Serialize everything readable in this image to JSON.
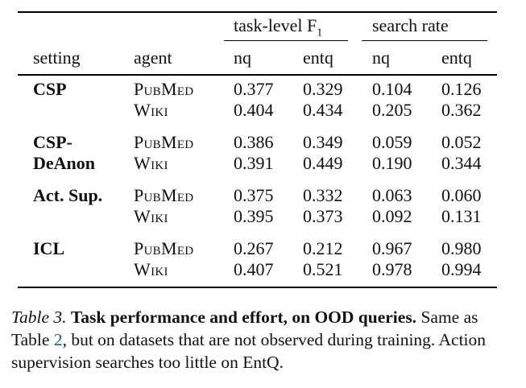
{
  "table": {
    "group_headers": [
      "task-level F",
      "search rate"
    ],
    "f1_subscript": "1",
    "columns": [
      "setting",
      "agent",
      "nq",
      "entq",
      "nq",
      "entq"
    ],
    "groups": [
      {
        "setting": [
          "CSP"
        ],
        "rows": [
          {
            "agent": "PubMed",
            "values": [
              "0.377",
              "0.329",
              "0.104",
              "0.126"
            ]
          },
          {
            "agent": "Wiki",
            "values": [
              "0.404",
              "0.434",
              "0.205",
              "0.362"
            ]
          }
        ]
      },
      {
        "setting": [
          "CSP-",
          "DeAnon"
        ],
        "rows": [
          {
            "agent": "PubMed",
            "values": [
              "0.386",
              "0.349",
              "0.059",
              "0.052"
            ]
          },
          {
            "agent": "Wiki",
            "values": [
              "0.391",
              "0.449",
              "0.190",
              "0.344"
            ]
          }
        ]
      },
      {
        "setting": [
          "Act. Sup."
        ],
        "rows": [
          {
            "agent": "PubMed",
            "values": [
              "0.375",
              "0.332",
              "0.063",
              "0.060"
            ]
          },
          {
            "agent": "Wiki",
            "values": [
              "0.395",
              "0.373",
              "0.092",
              "0.131"
            ]
          }
        ]
      },
      {
        "setting": [
          "ICL"
        ],
        "rows": [
          {
            "agent": "PubMed",
            "values": [
              "0.267",
              "0.212",
              "0.967",
              "0.980"
            ]
          },
          {
            "agent": "Wiki",
            "values": [
              "0.407",
              "0.521",
              "0.978",
              "0.994"
            ]
          }
        ]
      }
    ]
  },
  "caption": {
    "label": "Table 3.",
    "title": "Task performance and effort, on OOD queries.",
    "text_before_ref": "Same as Table",
    "ref": "2",
    "text_after_ref": ", but on datasets that are not observed during training. Action supervision searches too little on EntQ."
  }
}
